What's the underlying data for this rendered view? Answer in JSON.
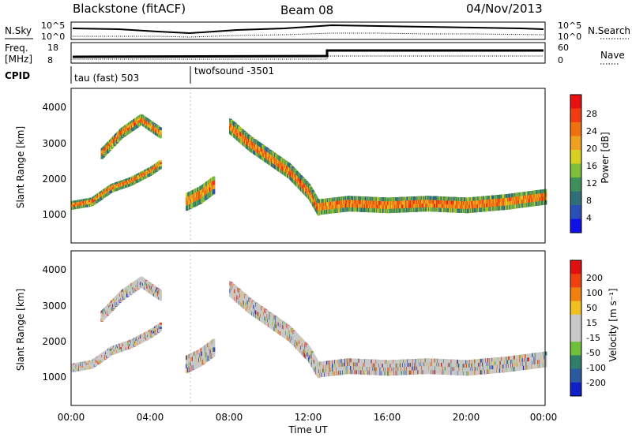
{
  "header": {
    "station": "Blackstone (fitACF)",
    "beam": "Beam 08",
    "date": "04/Nov/2013"
  },
  "noise_panel": {
    "left_label": "N.Sky",
    "right_label": "N.Search",
    "left_ticks": [
      "10^5",
      "10^0"
    ],
    "right_ticks": [
      "10^5",
      "10^0"
    ]
  },
  "freq_panel": {
    "left_label_line1": "Freq.",
    "left_label_line2": "[MHz]",
    "right_label": "Nave",
    "left_ticks": [
      "18",
      "8"
    ],
    "right_ticks": [
      "60",
      "0"
    ]
  },
  "cpid": {
    "label": "CPID",
    "segments": [
      {
        "name": "tau (fast) 503",
        "start_hour": 0
      },
      {
        "name": "twofsound -3501",
        "start_hour": 6
      }
    ]
  },
  "x_axis": {
    "label": "Time UT",
    "range_hours": [
      0,
      24
    ],
    "ticks": [
      "00:00",
      "04:00",
      "08:00",
      "12:00",
      "16:00",
      "20:00",
      "00:00"
    ]
  },
  "power_panel": {
    "ylabel": "Slant Range [km]",
    "yticks": [
      "4000",
      "3000",
      "2000",
      "1000"
    ],
    "colorbar_label": "Power [dB]",
    "colorbar_ticks": [
      "28",
      "24",
      "20",
      "16",
      "12",
      "8",
      "4"
    ],
    "colors": [
      "#1010e8",
      "#2a50b8",
      "#2f6f78",
      "#3f8f5a",
      "#7cbf3a",
      "#d8d020",
      "#f0a020",
      "#f07010",
      "#f03c10",
      "#e81010"
    ]
  },
  "velocity_panel": {
    "ylabel": "Slant Range [km]",
    "yticks": [
      "4000",
      "3000",
      "2000",
      "1000"
    ],
    "colorbar_label": "Velocity [m s⁻¹]",
    "colorbar_ticks": [
      "200",
      "100",
      "50",
      "15",
      "-15",
      "-50",
      "-100",
      "-200"
    ],
    "colors": [
      "#1020c8",
      "#2a5aa0",
      "#2f7f6a",
      "#6fbf3a",
      "#c8c8c8",
      "#c8c8c8",
      "#f0c020",
      "#f08010",
      "#f04010",
      "#e01010"
    ]
  },
  "chart_data": {
    "type": "heatmap",
    "x_range_hours": [
      0,
      24
    ],
    "y_range_km": [
      0,
      4500
    ],
    "echo_bands": [
      {
        "name": "main_band",
        "points": [
          [
            0.0,
            1100
          ],
          [
            1.0,
            1200
          ],
          [
            2.0,
            1600
          ],
          [
            3.0,
            1800
          ],
          [
            4.0,
            2100
          ],
          [
            4.5,
            2300
          ]
        ],
        "half_width_km": 120
      },
      {
        "name": "upper_band",
        "points": [
          [
            1.5,
            2600
          ],
          [
            2.5,
            3200
          ],
          [
            3.5,
            3600
          ],
          [
            4.5,
            3200
          ]
        ],
        "half_width_km": 150
      },
      {
        "name": "morning_patch",
        "points": [
          [
            5.8,
            1200
          ],
          [
            6.5,
            1400
          ],
          [
            7.2,
            1700
          ]
        ],
        "half_width_km": 250
      },
      {
        "name": "descending",
        "points": [
          [
            8.0,
            3400
          ],
          [
            9.0,
            2900
          ],
          [
            10.0,
            2500
          ],
          [
            11.0,
            2100
          ],
          [
            12.0,
            1500
          ],
          [
            12.5,
            1000
          ]
        ],
        "half_width_km": 220
      },
      {
        "name": "afternoon",
        "points": [
          [
            12.5,
            1050
          ],
          [
            14.0,
            1150
          ],
          [
            16.0,
            1100
          ],
          [
            18.0,
            1150
          ],
          [
            20.0,
            1100
          ],
          [
            22.0,
            1200
          ],
          [
            24.0,
            1350
          ]
        ],
        "half_width_km": 220
      }
    ]
  }
}
